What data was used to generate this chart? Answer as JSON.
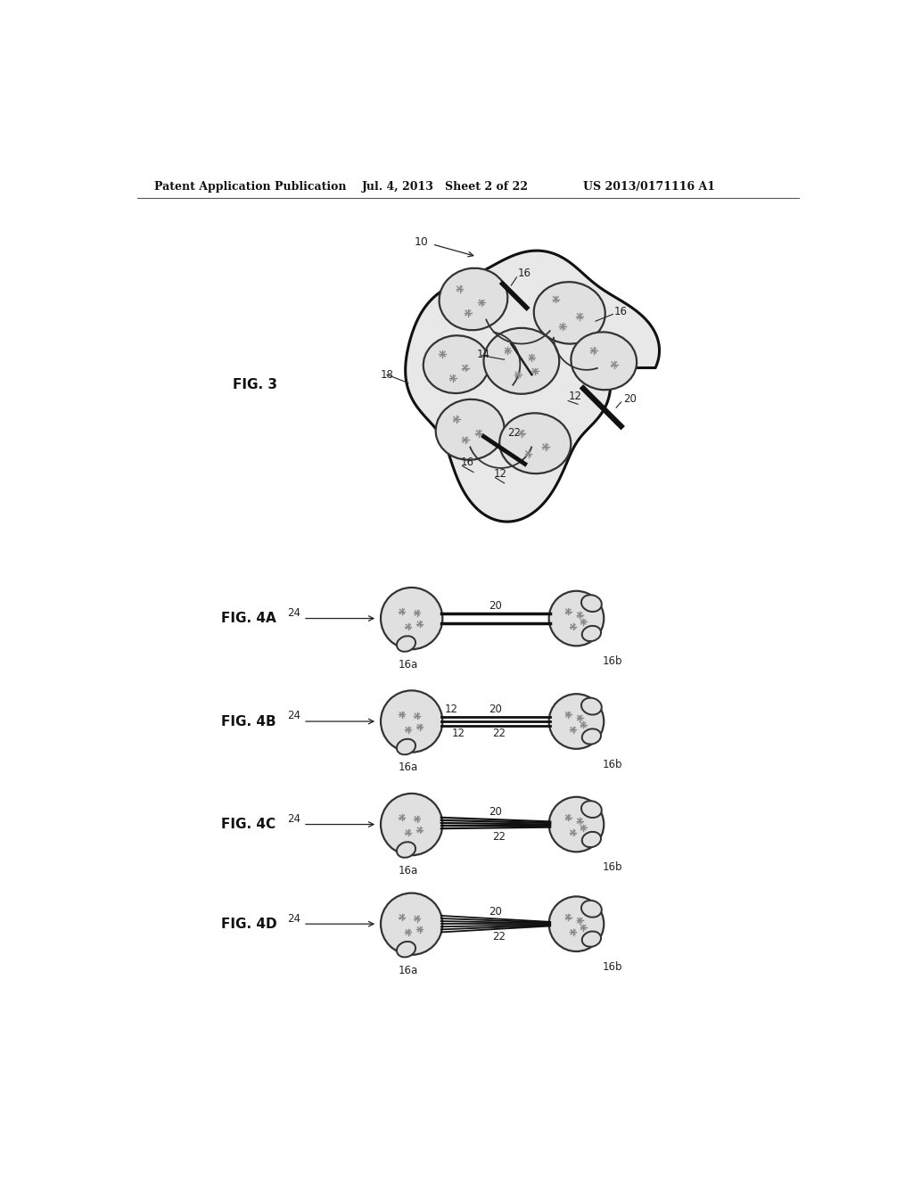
{
  "header_left": "Patent Application Publication",
  "header_mid": "Jul. 4, 2013   Sheet 2 of 22",
  "header_right": "US 2013/0171116 A1",
  "bg_color": "#ffffff"
}
